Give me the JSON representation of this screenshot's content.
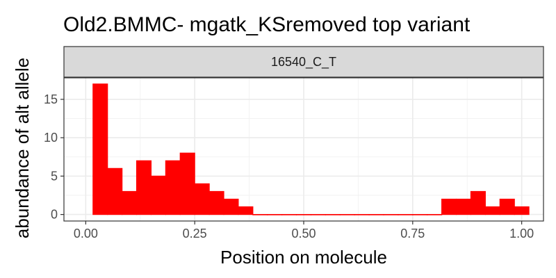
{
  "chart_data": {
    "type": "histogram",
    "title": "Old2.BMMC- mgatk_KSremoved top variant",
    "facet_label": "16540_C_T",
    "xlabel": "Position on molecule",
    "ylabel": "abundance of alt allele",
    "xlim": [
      -0.05,
      1.05
    ],
    "ylim": [
      -0.85,
      17.8
    ],
    "x_ticks": [
      0.0,
      0.25,
      0.5,
      0.75,
      1.0
    ],
    "x_tick_labels": [
      "0.00",
      "0.25",
      "0.50",
      "0.75",
      "1.00"
    ],
    "y_ticks": [
      0,
      5,
      10,
      15
    ],
    "y_tick_labels": [
      "0",
      "5",
      "10",
      "15"
    ],
    "grid": true,
    "fill_color": "#ff0000",
    "bin_width": 0.0333,
    "bins": [
      {
        "x": 0.0333,
        "count": 17
      },
      {
        "x": 0.0667,
        "count": 6
      },
      {
        "x": 0.1,
        "count": 3
      },
      {
        "x": 0.1333,
        "count": 7
      },
      {
        "x": 0.1667,
        "count": 5
      },
      {
        "x": 0.2,
        "count": 7
      },
      {
        "x": 0.2333,
        "count": 8
      },
      {
        "x": 0.2667,
        "count": 4
      },
      {
        "x": 0.3,
        "count": 3
      },
      {
        "x": 0.3333,
        "count": 2
      },
      {
        "x": 0.3667,
        "count": 1
      },
      {
        "x": 0.4,
        "count": 0
      },
      {
        "x": 0.4333,
        "count": 0
      },
      {
        "x": 0.4667,
        "count": 0
      },
      {
        "x": 0.5,
        "count": 0
      },
      {
        "x": 0.5333,
        "count": 0
      },
      {
        "x": 0.5667,
        "count": 0
      },
      {
        "x": 0.6,
        "count": 0
      },
      {
        "x": 0.6333,
        "count": 0
      },
      {
        "x": 0.6667,
        "count": 0
      },
      {
        "x": 0.7,
        "count": 0
      },
      {
        "x": 0.7333,
        "count": 0
      },
      {
        "x": 0.7667,
        "count": 0
      },
      {
        "x": 0.8,
        "count": 0
      },
      {
        "x": 0.8333,
        "count": 2
      },
      {
        "x": 0.8667,
        "count": 2
      },
      {
        "x": 0.9,
        "count": 3
      },
      {
        "x": 0.9333,
        "count": 1
      },
      {
        "x": 0.9667,
        "count": 2
      },
      {
        "x": 1.0,
        "count": 1
      }
    ]
  }
}
